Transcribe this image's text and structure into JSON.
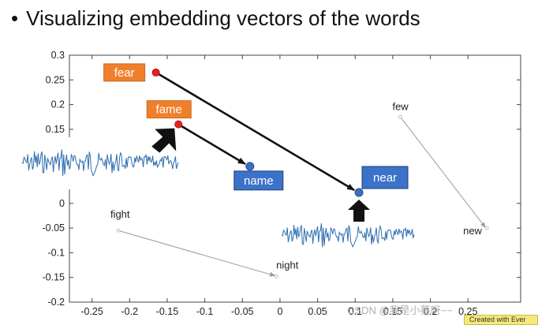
{
  "slide": {
    "bullet": "•",
    "title": "Visualizing embedding vectors of the words"
  },
  "chart_data": {
    "type": "scatter",
    "title": "",
    "xlabel": "",
    "ylabel": "",
    "xlim": [
      -0.28,
      0.32
    ],
    "ylim": [
      -0.2,
      0.3
    ],
    "x_ticks": [
      -0.25,
      -0.2,
      -0.15,
      -0.1,
      -0.05,
      0,
      0.05,
      0.1,
      0.15,
      0.2,
      0.25
    ],
    "x_tick_labels": [
      "-0.25",
      "-0.2",
      "-0.15",
      "-0.1",
      "-0.05",
      "0",
      "0.05",
      "0.1",
      "0.15",
      "0.2",
      "0.25"
    ],
    "y_ticks": [
      0.3,
      0.25,
      0.2,
      0.15,
      0,
      -0.05,
      -0.1,
      -0.15,
      -0.2
    ],
    "y_tick_labels": [
      "0.3",
      "0.25",
      "0.2",
      "0.15",
      "0",
      "-0.05",
      "-0.1",
      "-0.15",
      "-0.2"
    ],
    "grid": false,
    "colors": {
      "red": "#e82020",
      "blue": "#3a6fc7",
      "orange": "#f07f2c",
      "box_blue": "#3c72c9",
      "wave": "#2e6db0",
      "gray": "#999999"
    },
    "points": [
      {
        "word": "fear",
        "x": -0.165,
        "y": 0.265,
        "color": "red",
        "boxed": true,
        "box_color": "orange"
      },
      {
        "word": "fame",
        "x": -0.135,
        "y": 0.16,
        "color": "red",
        "boxed": true,
        "box_color": "orange"
      },
      {
        "word": "name",
        "x": -0.04,
        "y": 0.075,
        "color": "blue",
        "boxed": true,
        "box_color": "box_blue"
      },
      {
        "word": "near",
        "x": 0.105,
        "y": 0.022,
        "color": "blue",
        "boxed": true,
        "box_color": "box_blue"
      },
      {
        "word": "few",
        "x": 0.16,
        "y": 0.175,
        "color": "gray",
        "boxed": false
      },
      {
        "word": "new",
        "x": 0.275,
        "y": -0.05,
        "color": "gray",
        "boxed": false
      },
      {
        "word": "fight",
        "x": -0.215,
        "y": -0.055,
        "color": "gray",
        "boxed": false
      },
      {
        "word": "night",
        "x": -0.005,
        "y": -0.148,
        "color": "gray",
        "boxed": false
      }
    ],
    "arrows": [
      {
        "from": "fear",
        "to": "near",
        "style": "bold"
      },
      {
        "from": "fame",
        "to": "name",
        "style": "bold"
      },
      {
        "from": "few",
        "to": "new",
        "style": "thin"
      },
      {
        "from": "fight",
        "to": "night",
        "style": "thin"
      }
    ]
  },
  "overlays": {
    "watermark": "CSDN @我是小蔡呀~~",
    "badge": "Created with Ever"
  }
}
